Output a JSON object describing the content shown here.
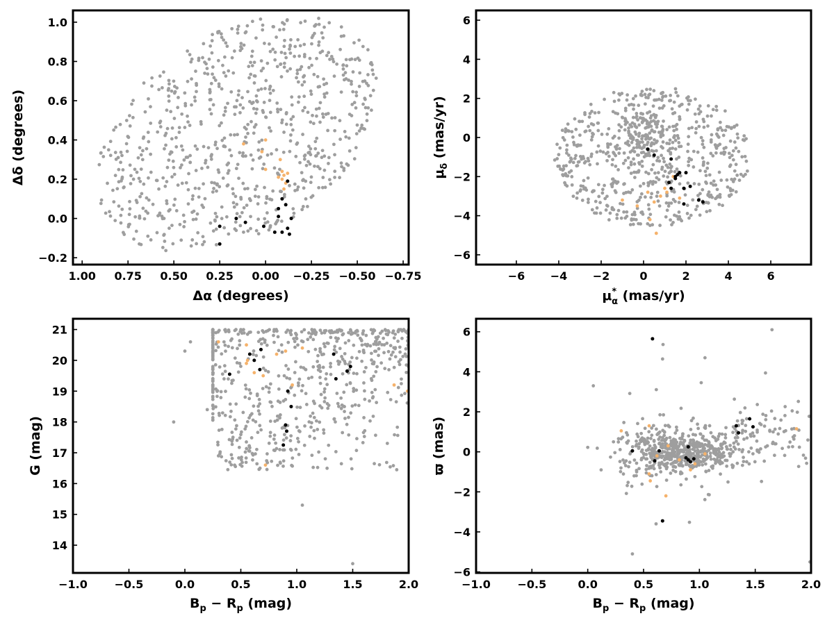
{
  "colors": {
    "field": "#9e9e9e",
    "candidate": "#f5b26b",
    "member": "#000000"
  },
  "chart_data": [
    {
      "id": "pos",
      "type": "scatter",
      "xlabel": "Δα (degrees)",
      "ylabel": "Δδ (degrees)",
      "xlim": [
        1.05,
        -0.78
      ],
      "ylim": [
        -0.235,
        1.06
      ],
      "xticks": [
        1.0,
        0.75,
        0.5,
        0.25,
        0.0,
        -0.25,
        -0.5,
        -0.75
      ],
      "xtick_labels": [
        "1.00",
        "0.75",
        "0.50",
        "0.25",
        "0.00",
        "−0.25",
        "−0.50",
        "−0.75"
      ],
      "yticks": [
        -0.2,
        0.0,
        0.2,
        0.4,
        0.6,
        0.8,
        1.0
      ],
      "ytick_labels": [
        "−0.2",
        "0.0",
        "0.2",
        "0.4",
        "0.6",
        "0.8",
        "1.0"
      ],
      "series": [
        {
          "role": "field",
          "color": "#9e9e9e",
          "generated": {
            "shape": "ellipse",
            "cx": 0.15,
            "cy": 0.43,
            "rx": 0.83,
            "ry": 0.52,
            "rot": -0.5,
            "n": 800,
            "seed": 11
          }
        },
        {
          "role": "candidate",
          "color": "#f5b26b",
          "points": [
            [
              0.12,
              0.38
            ],
            [
              0.02,
              0.34
            ],
            [
              0.0,
              0.4
            ],
            [
              -0.08,
              0.3
            ],
            [
              -0.09,
              0.24
            ],
            [
              -0.1,
              0.22
            ],
            [
              -0.12,
              0.23
            ],
            [
              -0.09,
              0.2
            ],
            [
              -0.11,
              0.18
            ],
            [
              0.0,
              0.25
            ],
            [
              -0.07,
              0.21
            ],
            [
              -0.1,
              0.15
            ]
          ]
        },
        {
          "role": "member",
          "color": "#000000",
          "points": [
            [
              0.25,
              -0.04
            ],
            [
              0.25,
              -0.13
            ],
            [
              0.16,
              0.0
            ],
            [
              0.11,
              -0.02
            ],
            [
              0.01,
              -0.04
            ],
            [
              -0.05,
              -0.07
            ],
            [
              -0.07,
              0.05
            ],
            [
              -0.07,
              0.01
            ],
            [
              -0.09,
              0.1
            ],
            [
              -0.11,
              0.07
            ],
            [
              -0.12,
              0.19
            ],
            [
              -0.12,
              -0.05
            ],
            [
              -0.14,
              0.0
            ],
            [
              -0.13,
              -0.08
            ],
            [
              -0.09,
              -0.07
            ]
          ]
        }
      ]
    },
    {
      "id": "pm",
      "type": "scatter",
      "xlabel": "μ*α (mas/yr)",
      "ylabel": "μδ (mas/yr)",
      "xlim": [
        -7.9,
        7.9
      ],
      "ylim": [
        -6.5,
        6.5
      ],
      "xticks": [
        -6,
        -4,
        -2,
        0,
        2,
        4,
        6
      ],
      "xtick_labels": [
        "−6",
        "−4",
        "−2",
        "0",
        "2",
        "4",
        "6"
      ],
      "yticks": [
        -6,
        -4,
        -2,
        0,
        2,
        4,
        6
      ],
      "ytick_labels": [
        "−6",
        "−4",
        "−2",
        "0",
        "2",
        "4",
        "6"
      ],
      "series": [
        {
          "role": "field",
          "color": "#9e9e9e",
          "generated": {
            "shape": "ellipse",
            "cx": 0.4,
            "cy": -1.0,
            "rx": 4.6,
            "ry": 3.6,
            "rot": 0.0,
            "n": 650,
            "seed": 23,
            "core": {
              "cx": 0.1,
              "cy": 0.2,
              "rx": 0.9,
              "ry": 1.2,
              "n": 90
            }
          }
        },
        {
          "role": "candidate",
          "color": "#f5b26b",
          "points": [
            [
              -1.0,
              -3.2
            ],
            [
              -0.3,
              -3.5
            ],
            [
              0.2,
              -2.8
            ],
            [
              0.3,
              -4.2
            ],
            [
              0.6,
              -4.9
            ],
            [
              0.8,
              -3.0
            ],
            [
              1.0,
              -2.6
            ],
            [
              1.2,
              -2.3
            ],
            [
              1.4,
              -2.0
            ],
            [
              1.7,
              -3.1
            ],
            [
              0.5,
              -3.3
            ],
            [
              1.1,
              -2.8
            ]
          ]
        },
        {
          "role": "member",
          "color": "#000000",
          "points": [
            [
              0.2,
              -0.6
            ],
            [
              0.5,
              -0.9
            ],
            [
              1.3,
              -1.1
            ],
            [
              1.5,
              -2.1
            ],
            [
              1.6,
              -1.9
            ],
            [
              1.7,
              -1.8
            ],
            [
              1.9,
              -2.6
            ],
            [
              2.0,
              -1.8
            ],
            [
              2.2,
              -2.5
            ],
            [
              1.3,
              -2.6
            ],
            [
              1.2,
              -2.3
            ],
            [
              1.9,
              -3.4
            ],
            [
              2.6,
              -3.2
            ],
            [
              2.8,
              -3.3
            ],
            [
              1.5,
              -2.0
            ]
          ]
        }
      ]
    },
    {
      "id": "cmd",
      "type": "scatter",
      "xlabel": "Bp − Rp (mag)",
      "ylabel": "G (mag)",
      "xlim": [
        -1.0,
        2.0
      ],
      "ylim": [
        13.1,
        21.35
      ],
      "xticks": [
        -1.0,
        -0.5,
        0.0,
        0.5,
        1.0,
        1.5,
        2.0
      ],
      "xtick_labels": [
        "−1.0",
        "−0.5",
        "0.0",
        "0.5",
        "1.0",
        "1.5",
        "2.0"
      ],
      "yticks": [
        14,
        15,
        16,
        17,
        18,
        19,
        20,
        21
      ],
      "ytick_labels": [
        "14",
        "15",
        "16",
        "17",
        "18",
        "19",
        "20",
        "21"
      ],
      "series": [
        {
          "role": "field",
          "color": "#9e9e9e",
          "generated": {
            "shape": "cmd",
            "n": 700,
            "seed": 37
          }
        },
        {
          "role": "candidate",
          "color": "#f5b26b",
          "points": [
            [
              0.3,
              20.6
            ],
            [
              0.55,
              20.5
            ],
            [
              0.56,
              20.0
            ],
            [
              0.62,
              19.6
            ],
            [
              0.7,
              19.5
            ],
            [
              0.82,
              20.2
            ],
            [
              0.9,
              20.3
            ],
            [
              0.96,
              19.2
            ],
            [
              1.05,
              20.4
            ],
            [
              0.72,
              16.6
            ],
            [
              1.87,
              19.2
            ],
            [
              1.99,
              19.0
            ],
            [
              0.55,
              19.9
            ]
          ]
        },
        {
          "role": "member",
          "color": "#000000",
          "points": [
            [
              0.4,
              19.55
            ],
            [
              0.58,
              20.2
            ],
            [
              0.62,
              20.0
            ],
            [
              0.67,
              19.7
            ],
            [
              0.68,
              20.35
            ],
            [
              0.92,
              19.0
            ],
            [
              0.95,
              18.5
            ],
            [
              0.9,
              17.9
            ],
            [
              0.91,
              17.7
            ],
            [
              0.88,
              17.25
            ],
            [
              1.33,
              20.2
            ],
            [
              1.35,
              19.4
            ],
            [
              1.45,
              19.65
            ],
            [
              1.48,
              19.8
            ]
          ]
        }
      ]
    },
    {
      "id": "plx",
      "type": "scatter",
      "xlabel": "Bp − Rp (mag)",
      "ylabel": "ϖ (mas)",
      "xlim": [
        -1.0,
        2.0
      ],
      "ylim": [
        -6.05,
        6.65
      ],
      "xticks": [
        -1.0,
        -0.5,
        0.0,
        0.5,
        1.0,
        1.5,
        2.0
      ],
      "xtick_labels": [
        "−1.0",
        "−0.5",
        "0.0",
        "0.5",
        "1.0",
        "1.5",
        "2.0"
      ],
      "yticks": [
        -6,
        -4,
        -2,
        0,
        2,
        4,
        6
      ],
      "ytick_labels": [
        "−6",
        "−4",
        "−2",
        "0",
        "2",
        "4",
        "6"
      ],
      "series": [
        {
          "role": "field",
          "color": "#9e9e9e",
          "generated": {
            "shape": "plx",
            "n": 700,
            "seed": 53
          }
        },
        {
          "role": "candidate",
          "color": "#f5b26b",
          "points": [
            [
              0.3,
              1.05
            ],
            [
              0.55,
              1.3
            ],
            [
              0.55,
              -1.1
            ],
            [
              0.56,
              -1.45
            ],
            [
              0.62,
              -0.2
            ],
            [
              0.7,
              -2.2
            ],
            [
              0.72,
              0.3
            ],
            [
              0.82,
              -0.4
            ],
            [
              0.92,
              -0.9
            ],
            [
              1.05,
              -0.1
            ],
            [
              1.87,
              1.15
            ],
            [
              0.96,
              -0.6
            ]
          ]
        },
        {
          "role": "member",
          "color": "#000000",
          "points": [
            [
              0.4,
              0.05
            ],
            [
              0.58,
              5.65
            ],
            [
              0.6,
              -0.45
            ],
            [
              0.67,
              -3.45
            ],
            [
              0.64,
              0.05
            ],
            [
              0.88,
              -0.3
            ],
            [
              0.9,
              -0.4
            ],
            [
              0.92,
              -0.5
            ],
            [
              0.95,
              -0.35
            ],
            [
              0.9,
              0.25
            ],
            [
              1.33,
              1.3
            ],
            [
              1.35,
              0.95
            ],
            [
              1.45,
              1.65
            ],
            [
              1.48,
              1.25
            ]
          ]
        }
      ]
    }
  ]
}
